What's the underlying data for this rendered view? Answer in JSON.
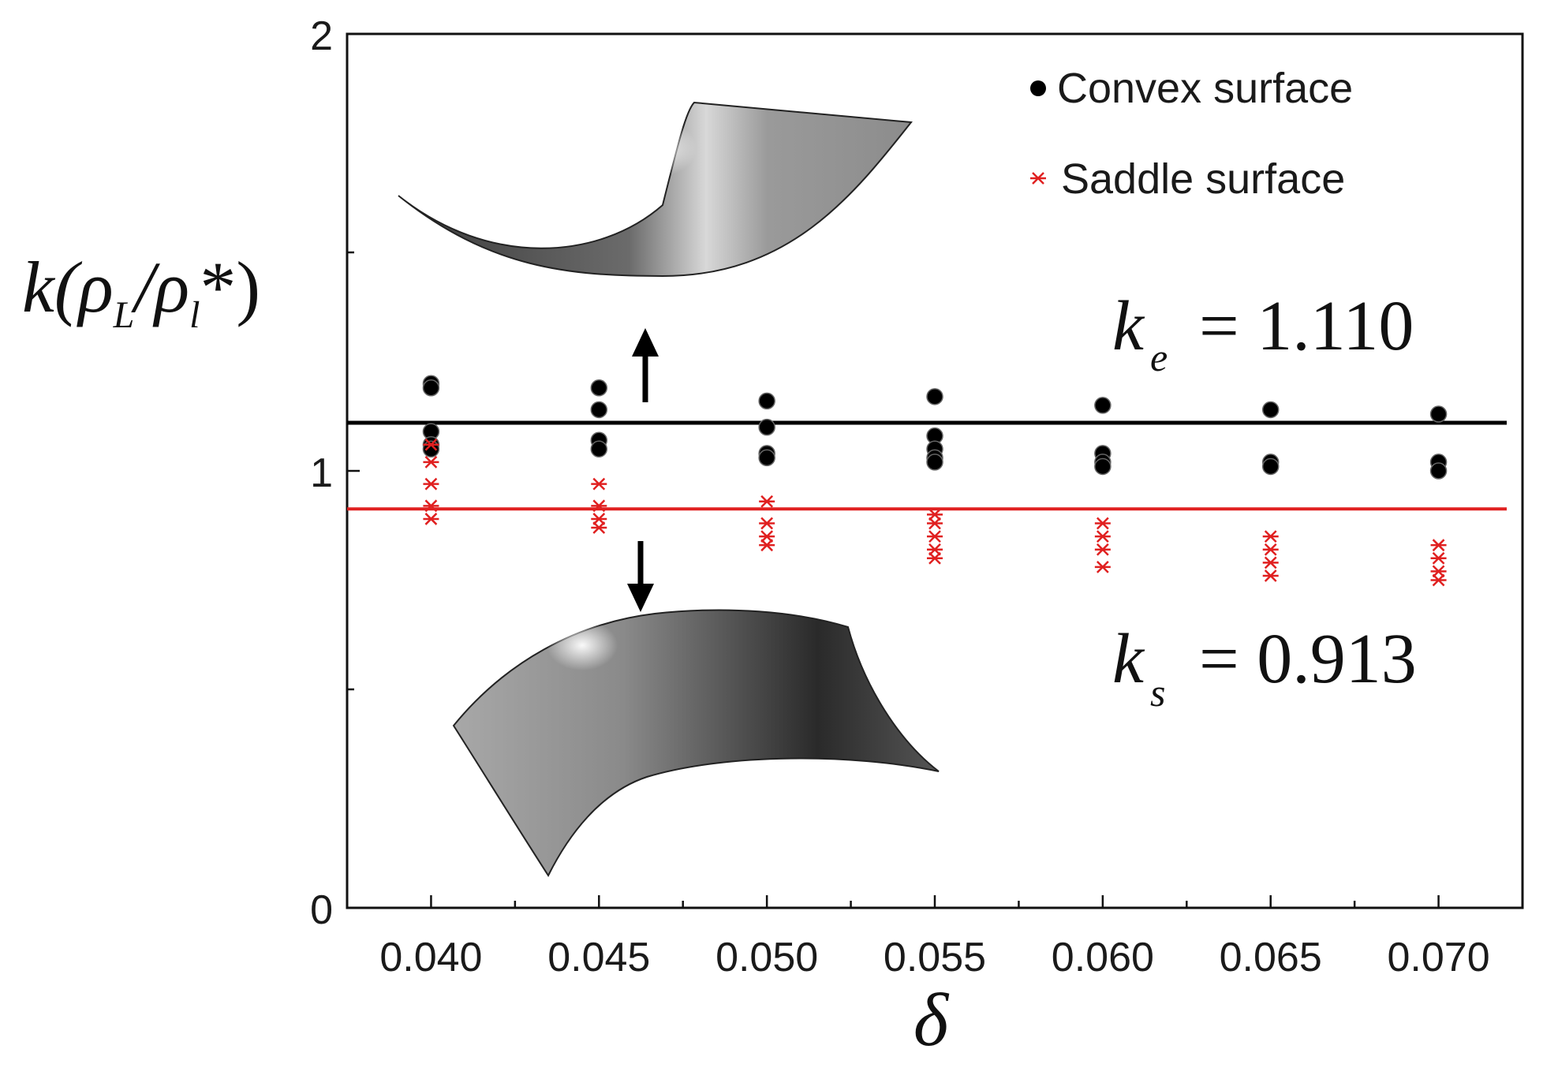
{
  "chart_data": {
    "type": "scatter",
    "xlabel": "δ",
    "ylabel": {
      "main": "k(ρ",
      "sub1": "L",
      "mid": "/ρ",
      "sub2": "l",
      "tail": "*)"
    },
    "xlim": [
      0.0375,
      0.0725
    ],
    "ylim": [
      0,
      2
    ],
    "x_ticks": [
      "0.040",
      "0.045",
      "0.050",
      "0.055",
      "0.060",
      "0.065",
      "0.070"
    ],
    "y_ticks": [
      "0",
      "1",
      "2"
    ],
    "legend_position": "top-right",
    "series": [
      {
        "name": "Convex surface",
        "marker": "circle",
        "color": "#000000",
        "points": [
          [
            0.04,
            1.2
          ],
          [
            0.04,
            1.19
          ],
          [
            0.04,
            1.09
          ],
          [
            0.04,
            1.06
          ],
          [
            0.04,
            1.05
          ],
          [
            0.045,
            1.19
          ],
          [
            0.045,
            1.14
          ],
          [
            0.045,
            1.07
          ],
          [
            0.045,
            1.05
          ],
          [
            0.05,
            1.16
          ],
          [
            0.05,
            1.1
          ],
          [
            0.05,
            1.04
          ],
          [
            0.05,
            1.03
          ],
          [
            0.055,
            1.17
          ],
          [
            0.055,
            1.08
          ],
          [
            0.055,
            1.05
          ],
          [
            0.055,
            1.03
          ],
          [
            0.055,
            1.02
          ],
          [
            0.06,
            1.15
          ],
          [
            0.06,
            1.04
          ],
          [
            0.06,
            1.02
          ],
          [
            0.06,
            1.01
          ],
          [
            0.065,
            1.14
          ],
          [
            0.065,
            1.02
          ],
          [
            0.065,
            1.01
          ],
          [
            0.07,
            1.13
          ],
          [
            0.07,
            1.02
          ],
          [
            0.07,
            1.0
          ]
        ]
      },
      {
        "name": "Saddle surface",
        "marker": "asterisk",
        "color": "#e02020",
        "points": [
          [
            0.04,
            1.06
          ],
          [
            0.04,
            1.02
          ],
          [
            0.04,
            0.97
          ],
          [
            0.04,
            0.92
          ],
          [
            0.04,
            0.89
          ],
          [
            0.045,
            0.97
          ],
          [
            0.045,
            0.92
          ],
          [
            0.045,
            0.89
          ],
          [
            0.045,
            0.87
          ],
          [
            0.05,
            0.93
          ],
          [
            0.05,
            0.88
          ],
          [
            0.05,
            0.85
          ],
          [
            0.05,
            0.83
          ],
          [
            0.055,
            0.9
          ],
          [
            0.055,
            0.88
          ],
          [
            0.055,
            0.85
          ],
          [
            0.055,
            0.82
          ],
          [
            0.055,
            0.8
          ],
          [
            0.06,
            0.88
          ],
          [
            0.06,
            0.85
          ],
          [
            0.06,
            0.82
          ],
          [
            0.06,
            0.78
          ],
          [
            0.065,
            0.85
          ],
          [
            0.065,
            0.82
          ],
          [
            0.065,
            0.79
          ],
          [
            0.065,
            0.76
          ],
          [
            0.07,
            0.83
          ],
          [
            0.07,
            0.8
          ],
          [
            0.07,
            0.77
          ],
          [
            0.07,
            0.75
          ]
        ]
      }
    ],
    "reference_lines": [
      {
        "y": 1.11,
        "color": "#000000",
        "label_symbol": "k",
        "label_sub": "e",
        "label_value": "= 1.110"
      },
      {
        "y": 0.913,
        "color": "#e02020",
        "label_symbol": "k",
        "label_sub": "s",
        "label_value": "= 0.913"
      }
    ],
    "annotations": {
      "arrow_up_color": "#000000",
      "arrow_down_color": "#000000",
      "surface_images": [
        "convex-surface-render",
        "saddle-surface-render"
      ]
    }
  }
}
